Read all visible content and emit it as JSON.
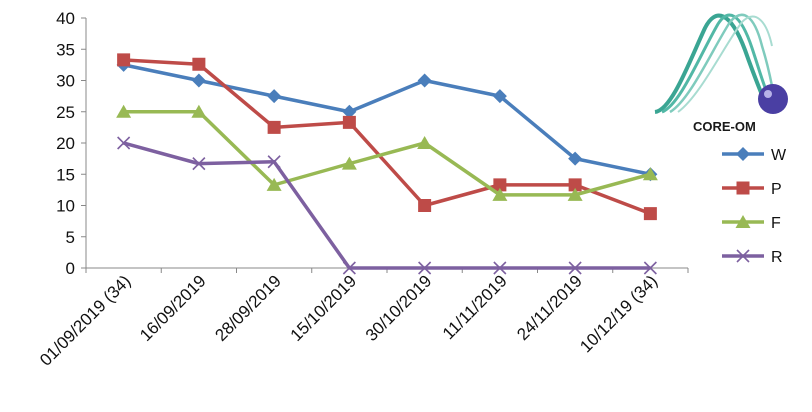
{
  "chart_data": {
    "type": "line",
    "categories": [
      "01/09/2019 (34)",
      "16/09/2019",
      "28/09/2019",
      "15/10/2019",
      "30/10/2019",
      "11/11/2019",
      "24/11/2019",
      "10/12/19 (34)"
    ],
    "ylim": [
      0,
      40
    ],
    "yticks": [
      0,
      5,
      10,
      15,
      20,
      25,
      30,
      35,
      40
    ],
    "grid": false,
    "legend_position": "right",
    "series": [
      {
        "name": "W",
        "color": "#4a7ebb",
        "marker": "diamond",
        "values": [
          32.5,
          30,
          27.5,
          25,
          30,
          27.5,
          17.5,
          15
        ]
      },
      {
        "name": "P",
        "color": "#be4b48",
        "marker": "square",
        "values": [
          33.3,
          32.6,
          22.5,
          23.3,
          10,
          13.3,
          13.3,
          8.7
        ]
      },
      {
        "name": "F",
        "color": "#98b954",
        "marker": "triangle",
        "values": [
          25,
          25,
          13.3,
          16.7,
          20,
          11.7,
          11.7,
          15
        ]
      },
      {
        "name": "R",
        "color": "#7d60a0",
        "marker": "x",
        "values": [
          20,
          16.7,
          17,
          0,
          0,
          0,
          0,
          0
        ]
      }
    ]
  },
  "logo": {
    "text": "CORE-OM"
  }
}
